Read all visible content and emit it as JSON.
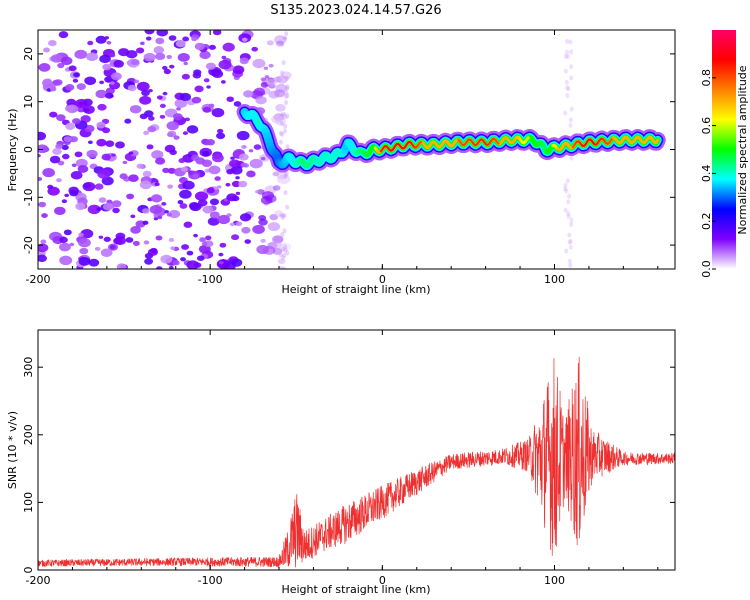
{
  "title": "S135.2023.024.14.57.G26",
  "chart_data": [
    {
      "type": "heatmap",
      "xlabel": "Height of straight line (km)",
      "ylabel": "Frequency (Hz)",
      "xlim": [
        -200,
        170
      ],
      "ylim": [
        -25,
        25
      ],
      "xticks": [
        -200,
        -100,
        0,
        100
      ],
      "yticks": [
        -20,
        -10,
        0,
        10,
        20
      ],
      "colorbar": {
        "label": "Normalized spectral amplitude",
        "range": [
          0,
          1
        ],
        "ticks": [
          "0.0",
          "0.2",
          "0.4",
          "0.6",
          "0.8"
        ],
        "colormap": [
          "#ffffff",
          "#7f00ff",
          "#0000ff",
          "#00ffff",
          "#00ff00",
          "#ffff00",
          "#ff7f00",
          "#ff0000",
          "#ff0066"
        ]
      },
      "noise_region_x": [
        -200,
        -55
      ],
      "ridge_points": [
        {
          "x": -80,
          "y": 8,
          "amp": 0.35
        },
        {
          "x": -72,
          "y": 6,
          "amp": 0.4
        },
        {
          "x": -66,
          "y": 2,
          "amp": 0.35
        },
        {
          "x": -60,
          "y": -3,
          "amp": 0.3
        },
        {
          "x": -55,
          "y": -2,
          "amp": 0.35
        },
        {
          "x": -45,
          "y": -3,
          "amp": 0.45
        },
        {
          "x": -35,
          "y": -2,
          "amp": 0.4
        },
        {
          "x": -25,
          "y": -1,
          "amp": 0.4
        },
        {
          "x": -20,
          "y": 1,
          "amp": 0.35
        },
        {
          "x": -12,
          "y": -1,
          "amp": 0.45
        },
        {
          "x": -5,
          "y": 0,
          "amp": 0.5
        },
        {
          "x": 0,
          "y": 0,
          "amp": 0.85
        },
        {
          "x": 15,
          "y": 1,
          "amp": 0.9
        },
        {
          "x": 30,
          "y": 1,
          "amp": 0.7
        },
        {
          "x": 45,
          "y": 1.5,
          "amp": 0.8
        },
        {
          "x": 60,
          "y": 1.5,
          "amp": 0.85
        },
        {
          "x": 75,
          "y": 2,
          "amp": 0.75
        },
        {
          "x": 88,
          "y": 2,
          "amp": 0.55
        },
        {
          "x": 95,
          "y": 0,
          "amp": 0.45
        },
        {
          "x": 103,
          "y": 0.5,
          "amp": 0.7
        },
        {
          "x": 120,
          "y": 1.5,
          "amp": 0.9
        },
        {
          "x": 140,
          "y": 2,
          "amp": 0.75
        },
        {
          "x": 160,
          "y": 2,
          "amp": 0.7
        }
      ]
    },
    {
      "type": "line",
      "xlabel": "Height of straight line (km)",
      "ylabel": "SNR (10 * v/v)",
      "xlim": [
        -200,
        170
      ],
      "ylim": [
        0,
        355
      ],
      "xticks": [
        -200,
        -100,
        0,
        100
      ],
      "yticks": [
        0,
        100,
        200,
        300
      ],
      "color": "#ee3030",
      "envelope": [
        {
          "x": -200,
          "base": 10,
          "amp": 5
        },
        {
          "x": -120,
          "base": 12,
          "amp": 6
        },
        {
          "x": -60,
          "base": 12,
          "amp": 8
        },
        {
          "x": -55,
          "base": 30,
          "amp": 30
        },
        {
          "x": -50,
          "base": 60,
          "amp": 60
        },
        {
          "x": -45,
          "base": 35,
          "amp": 25
        },
        {
          "x": -35,
          "base": 50,
          "amp": 25
        },
        {
          "x": -20,
          "base": 70,
          "amp": 30
        },
        {
          "x": 0,
          "base": 100,
          "amp": 25
        },
        {
          "x": 20,
          "base": 130,
          "amp": 20
        },
        {
          "x": 40,
          "base": 160,
          "amp": 12
        },
        {
          "x": 70,
          "base": 168,
          "amp": 12
        },
        {
          "x": 85,
          "base": 170,
          "amp": 25
        },
        {
          "x": 92,
          "base": 165,
          "amp": 80
        },
        {
          "x": 100,
          "base": 165,
          "amp": 160
        },
        {
          "x": 106,
          "base": 165,
          "amp": 60
        },
        {
          "x": 114,
          "base": 170,
          "amp": 150
        },
        {
          "x": 122,
          "base": 170,
          "amp": 40
        },
        {
          "x": 140,
          "base": 165,
          "amp": 10
        },
        {
          "x": 170,
          "base": 165,
          "amp": 8
        }
      ]
    }
  ]
}
